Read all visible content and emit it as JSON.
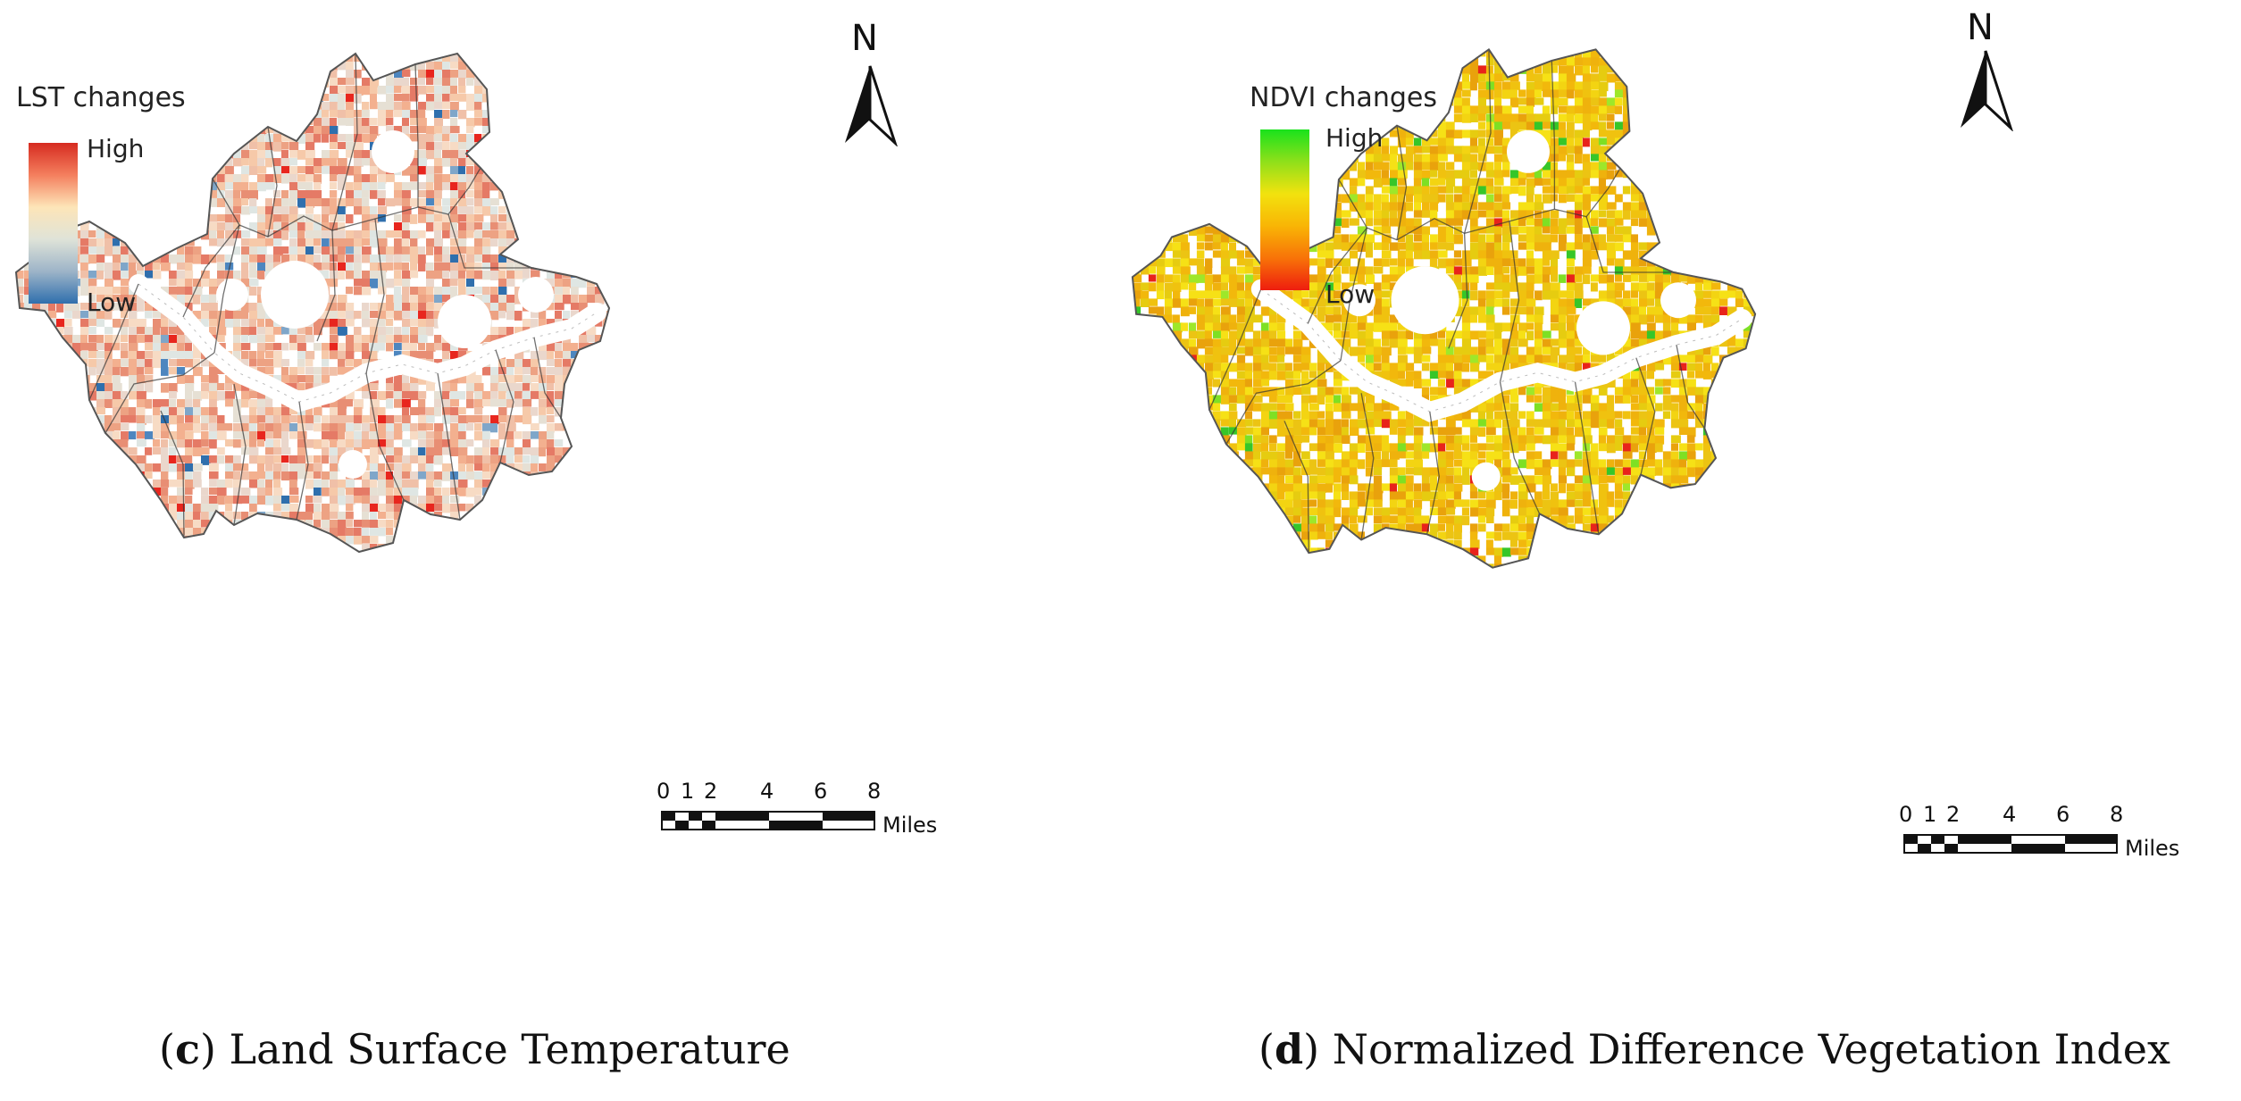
{
  "panels": [
    {
      "id": "c",
      "legend": {
        "title": "LST changes",
        "high": "High",
        "low": "Low",
        "colors": [
          "#d62b20",
          "#f47f5e",
          "#fde5b8",
          "#dfe3d8",
          "#9db4c8",
          "#2f6fad"
        ]
      },
      "north": "N",
      "scale": {
        "ticks": [
          "0",
          "1",
          "2",
          "4",
          "6",
          "8"
        ],
        "unit": "Miles"
      },
      "caption": {
        "letter": "c",
        "text": ") Land Surface Temperature"
      },
      "palette": [
        "#f3b08f",
        "#eda283",
        "#e88e74",
        "#f6c9a9",
        "#f7dbc4",
        "#f0c0a8",
        "#e57a66",
        "#ead7cc",
        "#e6e0d4",
        "#dfe6e3"
      ],
      "hot": "#e8261e",
      "cool": [
        "#4d86bf",
        "#7fa6c9",
        "#2f6fad"
      ]
    },
    {
      "id": "d",
      "legend": {
        "title": "NDVI changes",
        "high": "High",
        "low": "Low",
        "colors": [
          "#19e21c",
          "#8fe01a",
          "#f2e20e",
          "#f9b505",
          "#f87308",
          "#ee1d0e"
        ]
      },
      "north": "N",
      "scale": {
        "ticks": [
          "0",
          "1",
          "2",
          "4",
          "6",
          "8"
        ],
        "unit": "Miles"
      },
      "caption": {
        "letter": "d",
        "text": ") Normalized Difference Vegetation Index"
      },
      "palette": [
        "#f0c20f",
        "#f3d412",
        "#efb20d",
        "#e9a20c",
        "#f6e116",
        "#e6cc10",
        "#ecc413",
        "#f2b80c"
      ],
      "hot": "#e8231b",
      "cool": [
        "#7ee024",
        "#9ee72a",
        "#36c629"
      ]
    }
  ]
}
